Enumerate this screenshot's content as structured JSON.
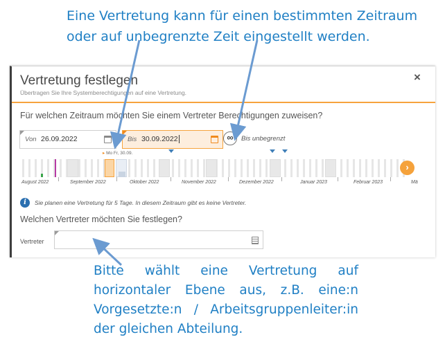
{
  "callouts": {
    "top_line1": "Eine Vertretung kann für einen bestimmten Zeitraum",
    "top_line2": "oder auf unbegrenzte Zeit eingestellt werden.",
    "bottom": "Bitte wählt eine Vertretung auf horizontaler Ebene aus, z.B. eine:n Vorgesetzte:n / Arbeitsgruppenleiter:in der gleichen Abteilung."
  },
  "dialog": {
    "title": "Vertretung festlegen",
    "subtitle": "Übertragen Sie Ihre Systemberechtigungen auf eine Vertretung.",
    "close_label": "×",
    "period_question": "Für welchen Zeitraum möchten Sie einem Vertreter Berechtigungen zuweisen?",
    "von": {
      "label": "Von",
      "value": "26.09.2022"
    },
    "bis": {
      "label": "Bis",
      "value": "30.09.2022"
    },
    "unlimited_symbol": "∞",
    "unlimited_label": "Bis unbegrenzt",
    "timeline": {
      "months": [
        "August 2022",
        "September 2022",
        "Oktober 2022",
        "November 2022",
        "Dezember 2022",
        "Januar 2023",
        "Februar 2023",
        "Mä"
      ],
      "marker_flag": "▸",
      "marker_mo": "Mo",
      "marker_date": "Fr, 30.09.",
      "next_symbol": "›"
    },
    "info_text": "Sie planen eine Vertretung für 5 Tage. In diesem Zeitraum gibt es keine Vertreter.",
    "substitute_question": "Welchen Vertreter möchten Sie festlegen?",
    "vertreter_label": "Vertreter",
    "vertreter_value": ""
  },
  "colors": {
    "callout_blue": "#1f7fc4",
    "accent_orange": "#f6a33d",
    "arrow_blue": "#6b9bd1",
    "info_blue": "#2a6fb0"
  }
}
